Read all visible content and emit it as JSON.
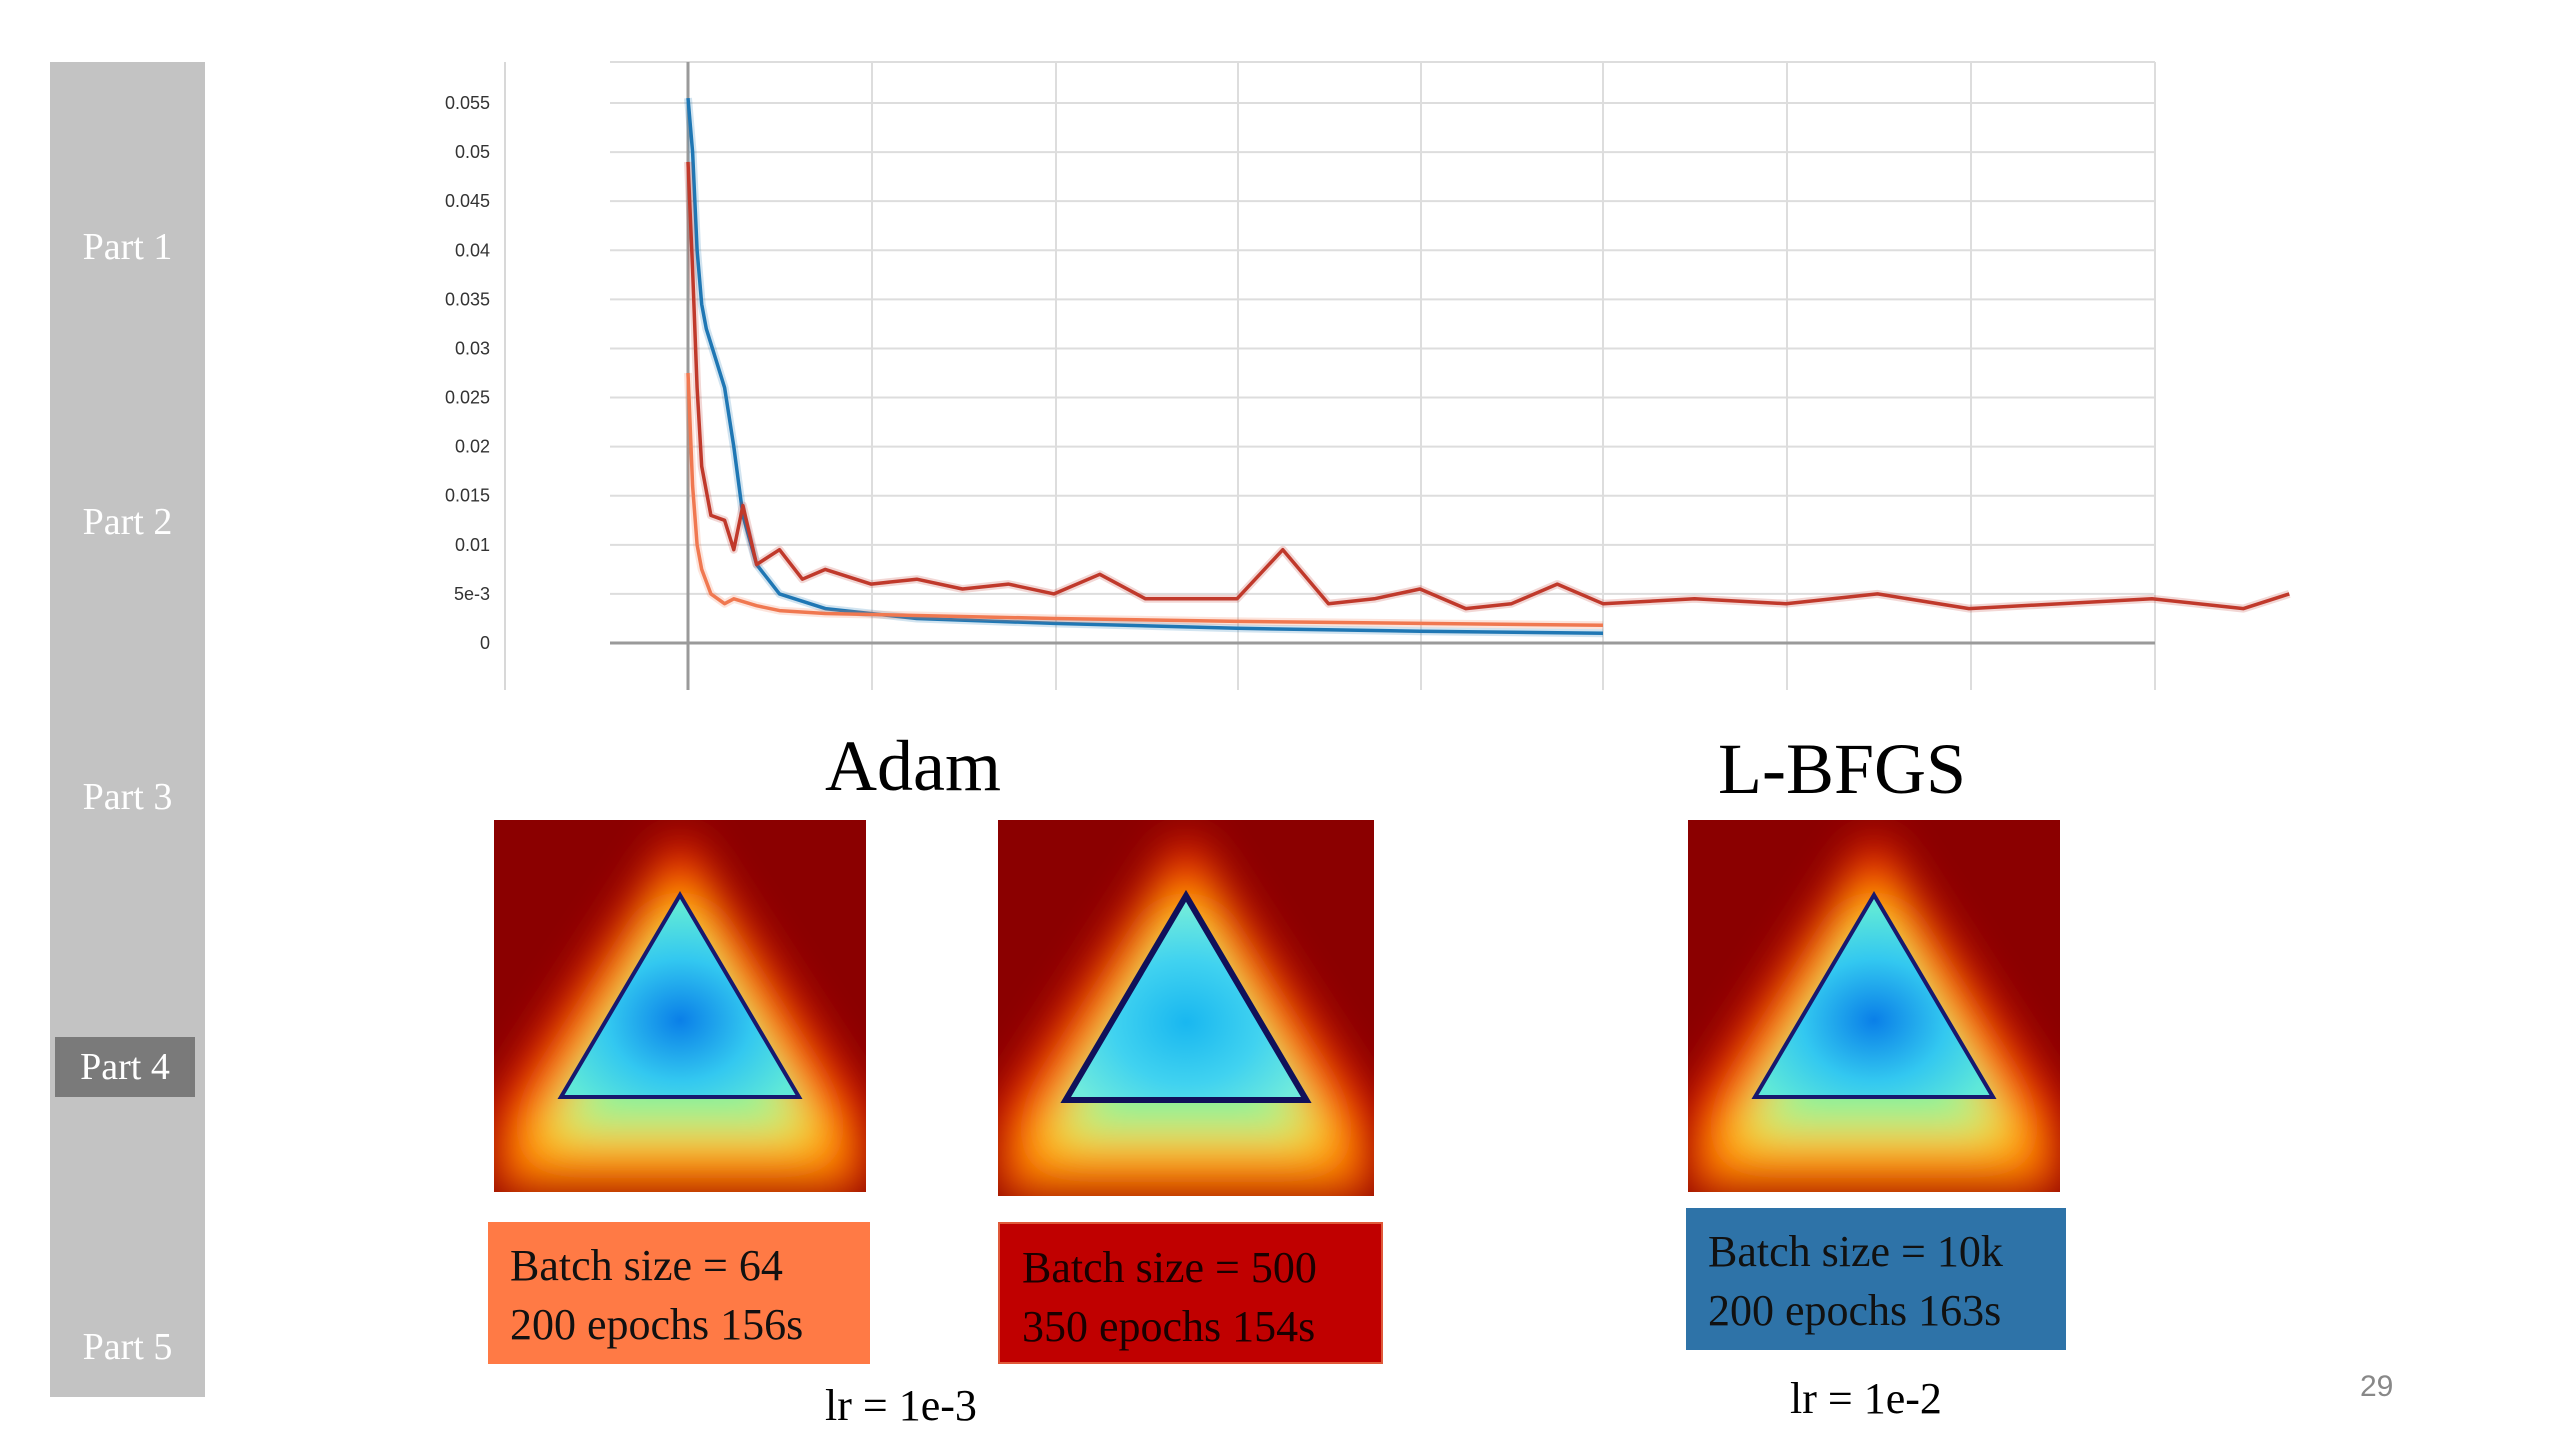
{
  "sidebar": {
    "items": [
      {
        "label": "Part 1",
        "active": false
      },
      {
        "label": "Part 2",
        "active": false
      },
      {
        "label": "Part 3",
        "active": false
      },
      {
        "label": "Part 4",
        "active": true
      },
      {
        "label": "Part 5",
        "active": false
      }
    ]
  },
  "chart_data": {
    "type": "line",
    "title": "",
    "xlabel": "",
    "ylabel": "",
    "ytick_labels": [
      "0",
      "5e-3",
      "0.01",
      "0.015",
      "0.02",
      "0.025",
      "0.03",
      "0.035",
      "0.04",
      "0.045",
      "0.05",
      "0.055"
    ],
    "ylim": [
      0,
      0.055
    ],
    "grid": true,
    "series": [
      {
        "color": "#1f77b4",
        "x": [
          0,
          1,
          2,
          3,
          4,
          6,
          8,
          10,
          12,
          15,
          20,
          30,
          50,
          80,
          120,
          160,
          200
        ],
        "values": [
          0.0555,
          0.05,
          0.04,
          0.0345,
          0.032,
          0.029,
          0.026,
          0.02,
          0.013,
          0.008,
          0.005,
          0.0035,
          0.0025,
          0.002,
          0.0015,
          0.0012,
          0.001
        ]
      },
      {
        "color": "#c0392b",
        "x": [
          0,
          1,
          2,
          3,
          5,
          8,
          10,
          12,
          15,
          20,
          25,
          30,
          40,
          50,
          60,
          70,
          80,
          90,
          100,
          110,
          120,
          130,
          140,
          150,
          160,
          170,
          180,
          190,
          200,
          220,
          240,
          260,
          280,
          300,
          320,
          340,
          350
        ],
        "values": [
          0.049,
          0.038,
          0.026,
          0.018,
          0.013,
          0.0125,
          0.0095,
          0.014,
          0.008,
          0.0095,
          0.0065,
          0.0075,
          0.006,
          0.0065,
          0.0055,
          0.006,
          0.005,
          0.007,
          0.0045,
          0.0045,
          0.0045,
          0.0095,
          0.004,
          0.0045,
          0.0055,
          0.0035,
          0.004,
          0.006,
          0.004,
          0.0045,
          0.004,
          0.005,
          0.0035,
          0.004,
          0.0045,
          0.0035,
          0.005
        ]
      },
      {
        "color": "#f07850",
        "x": [
          0,
          1,
          2,
          3,
          5,
          8,
          10,
          15,
          20,
          30,
          50,
          80,
          120,
          160,
          200
        ],
        "values": [
          0.0275,
          0.016,
          0.01,
          0.0075,
          0.005,
          0.004,
          0.0045,
          0.0038,
          0.0033,
          0.003,
          0.0028,
          0.0025,
          0.0022,
          0.002,
          0.0018
        ]
      }
    ]
  },
  "adam": {
    "title": "Adam"
  },
  "lbfgs": {
    "title": "L-BFGS"
  },
  "runs": [
    {
      "line1": "Batch size = 64",
      "line2": "200 epochs 156s",
      "box_color": "#ff7a45"
    },
    {
      "line1": "Batch size = 500",
      "line2": "350 epochs  154s",
      "box_color": "#c00000"
    },
    {
      "line1": "Batch size = 10k",
      "line2": "200 epochs 163s",
      "box_color": "#2e73a8"
    }
  ],
  "lr": {
    "adam": "lr = 1e-3",
    "lbfgs": "lr = 1e-2"
  },
  "page_number": "29"
}
